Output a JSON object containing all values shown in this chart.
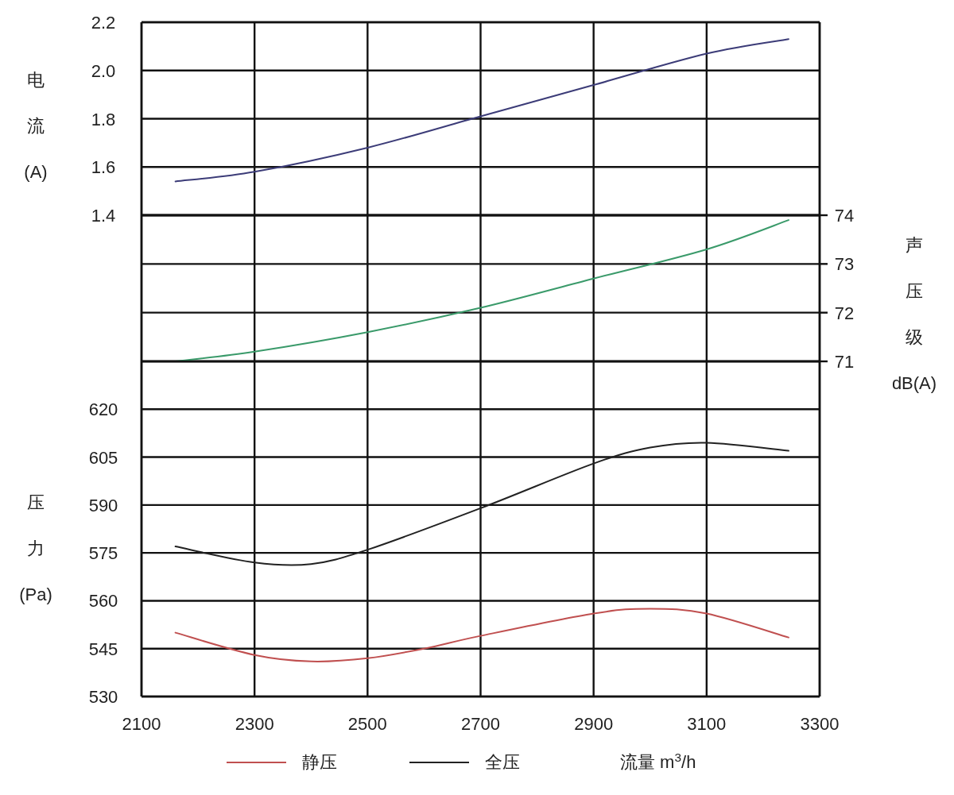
{
  "chart_data": [
    {
      "type": "line",
      "ylabel": "电流(A)",
      "xlim": [
        2100,
        3300
      ],
      "xticks": [
        2100,
        2300,
        2500,
        2700,
        2900,
        3100,
        3300
      ],
      "ylim": [
        1.4,
        2.2
      ],
      "yticks": [
        1.4,
        1.6,
        1.8,
        {
          "value": 2.0,
          "label": "2.0"
        },
        2.2
      ],
      "tick_labels": "y",
      "grid": true,
      "series": [
        {
          "color": "#3c3c78",
          "x": [
            2160,
            2300,
            2500,
            2700,
            2900,
            3100,
            3245
          ],
          "values": [
            1.54,
            1.58,
            1.68,
            1.81,
            1.94,
            2.07,
            2.13
          ]
        }
      ]
    },
    {
      "type": "line",
      "y2label": "声压级dB(A)",
      "xlim": [
        2100,
        3300
      ],
      "xticks": [
        2100,
        2300,
        2500,
        2700,
        2900,
        3100,
        3300
      ],
      "y2lim": [
        71,
        74
      ],
      "y2ticks": [
        71,
        72,
        73,
        74
      ],
      "tick_labels": "y",
      "grid": true,
      "series": [
        {
          "color": "#3a9a6a",
          "axis": "y2",
          "x": [
            2160,
            2300,
            2500,
            2700,
            2900,
            3100,
            3245
          ],
          "values": [
            71.0,
            71.2,
            71.6,
            72.1,
            72.7,
            73.3,
            73.9
          ]
        }
      ]
    },
    {
      "type": "line",
      "ylabel": "压力(Pa)",
      "xlabel": "流量 m$^{3}$/h",
      "xlim": [
        2100,
        3300
      ],
      "xticks": [
        2100,
        2300,
        2500,
        2700,
        2900,
        3100,
        3300
      ],
      "ylim": [
        530,
        635
      ],
      "yticks": [
        530,
        545,
        560,
        575,
        590,
        605,
        620
      ],
      "grid": true,
      "legend": "bottom",
      "series": [
        {
          "name": "静压",
          "color": "#c05050",
          "x": [
            2160,
            2300,
            2400,
            2500,
            2600,
            2700,
            2900,
            3000,
            3100,
            3245
          ],
          "values": [
            550,
            543,
            541,
            542,
            545,
            549,
            556,
            557.5,
            556,
            548.5
          ]
        },
        {
          "name": "全压",
          "color": "#222222",
          "x": [
            2160,
            2300,
            2400,
            2500,
            2700,
            2900,
            3000,
            3100,
            3245
          ],
          "values": [
            577,
            572,
            571.5,
            576,
            589,
            603,
            608,
            609.5,
            607
          ]
        }
      ]
    }
  ]
}
